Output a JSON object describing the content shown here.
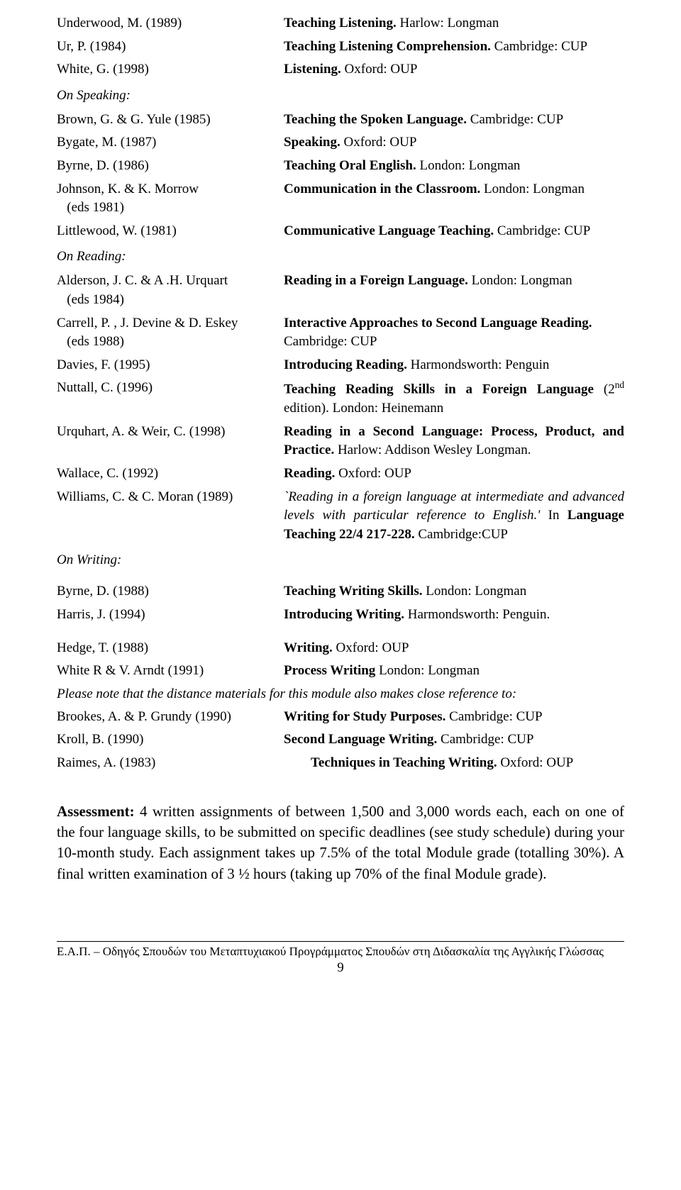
{
  "entries_top": [
    {
      "author": "Underwood, M. (1989)",
      "title": "Teaching Listening.",
      "pub": " Harlow: Longman"
    },
    {
      "author": "Ur, P. (1984)",
      "title": "Teaching Listening Comprehension.",
      "pub": " Cambridge: CUP"
    },
    {
      "author": "White, G. (1998)",
      "title": "Listening.",
      "pub": " Oxford: OUP"
    }
  ],
  "section_speaking": "On Speaking:",
  "entries_speaking": [
    {
      "author": "Brown, G. & G. Yule (1985)",
      "title": "Teaching the Spoken Language.",
      "pub": " Cambridge: CUP"
    },
    {
      "author": "Bygate, M. (1987)",
      "title": "Speaking.",
      "pub": " Oxford: OUP"
    },
    {
      "author": "Byrne, D. (1986)",
      "title": "Teaching Oral English.",
      "pub": " London: Longman"
    },
    {
      "author": "Johnson, K. & K. Morrow",
      "author2": "(eds 1981)",
      "title": "Communication in the Classroom.",
      "pub": " London: Longman"
    },
    {
      "author": "Littlewood, W. (1981)",
      "title": "Communicative Language Teaching.",
      "pub": " Cambridge: CUP"
    }
  ],
  "section_reading": "On Reading:",
  "entries_reading": [
    {
      "author": "Alderson, J. C. & A .H. Urquart",
      "author2": "(eds 1984)",
      "title": "Reading in a Foreign Language.",
      "pub": " London: Longman"
    },
    {
      "author": "Carrell, P. , J. Devine & D. Eskey",
      "author2": "(eds 1988)",
      "title": "Interactive Approaches to Second Language Reading.",
      "pub": " Cambridge: CUP"
    },
    {
      "author": "Davies, F. (1995)",
      "title": "Introducing Reading.",
      "pub": " Harmondsworth: Penguin"
    },
    {
      "author": "Nuttall, C. (1996)",
      "title_html": "<span class='bold'>Teaching Reading Skills in a Foreign Language</span> (2<sup>nd</sup> edition). London: Heinemann",
      "justify": true
    },
    {
      "author": "Urquhart, A. & Weir, C. (1998)",
      "title_html": "<span class='bold'>Reading in a Second Language: Process, Product, and Practice.</span> Harlow: Addison Wesley Longman.",
      "justify": true
    },
    {
      "author": "Wallace, C. (1992)",
      "title": "Reading.",
      "pub": " Oxford: OUP"
    },
    {
      "author": "Williams, C. & C. Moran (1989)",
      "title_html": "<span class='italic'>`Reading in a foreign language at intermediate and advanced levels with particular reference to English.'</span> In <span class='bold'>Language Teaching 22/4 217-228.</span> Cambridge:CUP",
      "justify": true
    }
  ],
  "section_writing": "On Writing:",
  "entries_writing": [
    {
      "author": "Byrne, D. (1988)",
      "title": "Teaching Writing Skills.",
      "pub": " London: Longman"
    },
    {
      "author": "Harris, J. (1994)",
      "title": "Introducing Writing.",
      "pub": " Harmondsworth: Penguin."
    },
    {
      "gap": true
    },
    {
      "author": "Hedge, T. (1988)",
      "title": "Writing.",
      "pub": " Oxford: OUP"
    },
    {
      "author": "White R & V. Arndt (1991)",
      "title": "Process Writing",
      "pub": " London: Longman"
    }
  ],
  "note": "Please note that the distance materials for this module also makes close reference to:",
  "entries_after_note": [
    {
      "author": "Brookes, A. & P. Grundy (1990)",
      "title": "Writing for Study Purposes.",
      "pub": " Cambridge: CUP"
    },
    {
      "author": "Kroll, B. (1990)",
      "title": "Second Language Writing.",
      "pub": " Cambridge: CUP"
    },
    {
      "author": "Raimes, A. (1983)",
      "title_html": "&nbsp;&nbsp;&nbsp;&nbsp;&nbsp;&nbsp;&nbsp;&nbsp;<span class='bold'>Techniques in Teaching Writing.</span> Oxford: OUP"
    }
  ],
  "assessment_label": "Assessment:",
  "assessment_body": " 4 written assignments of between 1,500 and 3,000 words each, each on one of the four language skills, to be submitted on specific deadlines (see study schedule) during your 10-month study. Each assignment takes up 7.5% of the total Module grade (totalling 30%). A final written examination of 3 ½ hours (taking up 70% of the final Module grade).",
  "footer": "Ε.Α.Π. – Οδηγός Σπουδών του Μεταπτυχιακού Προγράμματος Σπουδών στη Διδασκαλία της Αγγλικής Γλώσσας",
  "page_number": "9"
}
